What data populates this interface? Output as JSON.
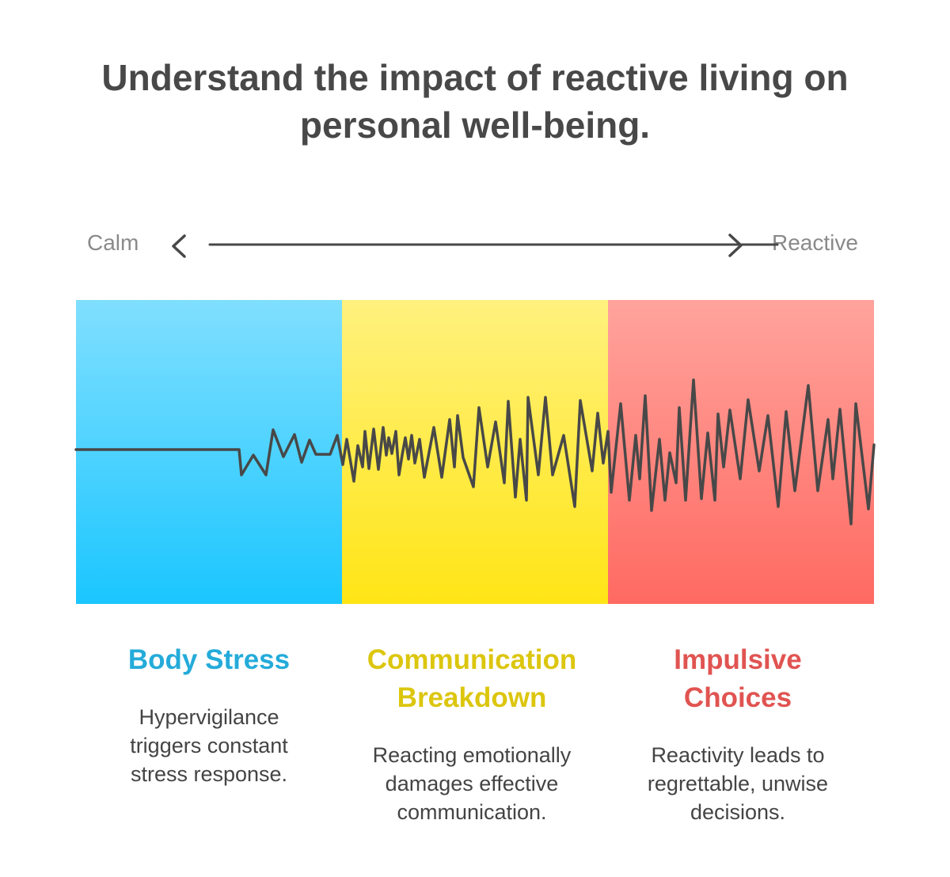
{
  "title": {
    "line1": "Understand the impact of reactive living on",
    "line2": "personal well-being."
  },
  "scale": {
    "left_label": "Calm",
    "right_label": "Reactive",
    "icons": [
      "chevron-left-icon",
      "chevron-right-icon"
    ]
  },
  "colors": {
    "line": "#484848",
    "blue_top": "#80DFFF",
    "blue_bottom": "#1BC6FF",
    "yellow_top": "#FFF17E",
    "yellow_bottom": "#FFE516",
    "red_top": "#FFA39C",
    "red_bottom": "#FF6A62",
    "blue_heading": "#24ABDA",
    "yellow_heading": "#DCC60E",
    "red_heading": "#E05451"
  },
  "sections": [
    {
      "heading_lines": [
        "Body Stress"
      ],
      "desc_lines": [
        "Hypervigilance",
        "triggers constant",
        "stress response."
      ]
    },
    {
      "heading_lines": [
        "Communication",
        "Breakdown"
      ],
      "desc_lines": [
        "Reacting emotionally",
        "damages effective",
        "communication."
      ]
    },
    {
      "heading_lines": [
        "Impulsive",
        "Choices"
      ],
      "desc_lines": [
        "Reactivity leads to",
        "regrettable, unwise",
        "decisions."
      ]
    }
  ]
}
